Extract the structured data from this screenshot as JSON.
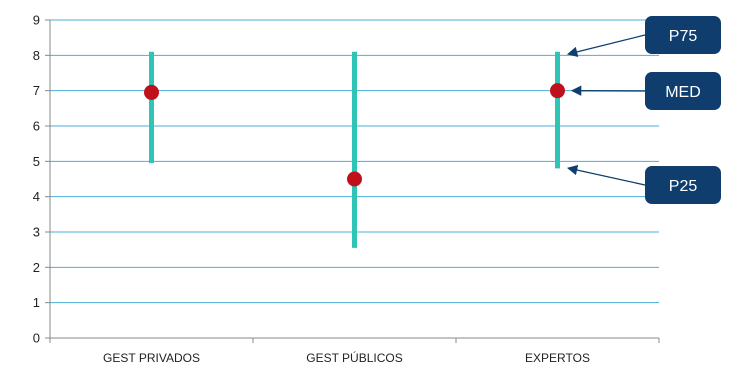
{
  "chart_data": {
    "type": "range",
    "title": "",
    "xlabel": "",
    "ylabel": "",
    "ylim": [
      0,
      9
    ],
    "yticks": [
      "0",
      "1",
      "2",
      "3",
      "4",
      "5",
      "6",
      "7",
      "8",
      "9"
    ],
    "grid": true,
    "categories": [
      "GEST PRIVADOS",
      "GEST PÚBLICOS",
      "EXPERTOS"
    ],
    "series": [
      {
        "name": "P75",
        "values": [
          8.1,
          8.1,
          8.1
        ]
      },
      {
        "name": "MED",
        "values": [
          6.95,
          4.5,
          7.0
        ]
      },
      {
        "name": "P25",
        "values": [
          4.95,
          2.55,
          4.8
        ]
      }
    ],
    "annotations": [
      {
        "label": "P75",
        "points_to": "EXPERTOS P75"
      },
      {
        "label": "MED",
        "points_to": "EXPERTOS MED"
      },
      {
        "label": "P25",
        "points_to": "EXPERTOS P25"
      }
    ],
    "colors": {
      "range": "#2ec4b6",
      "median": "#c0101b",
      "grid": "#4aaed9",
      "callout": "#0e3d6e"
    }
  }
}
